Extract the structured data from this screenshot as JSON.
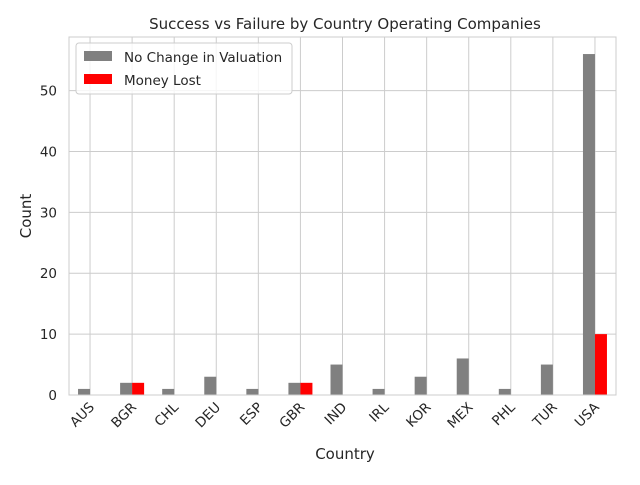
{
  "chart_data": {
    "type": "bar",
    "title": "Success vs Failure by Country Operating Companies",
    "xlabel": "Country",
    "ylabel": "Count",
    "categories": [
      "AUS",
      "BGR",
      "CHL",
      "DEU",
      "ESP",
      "GBR",
      "IND",
      "IRL",
      "KOR",
      "MEX",
      "PHL",
      "TUR",
      "USA"
    ],
    "series": [
      {
        "name": "No Change in Valuation",
        "color": "#808080",
        "values": [
          1,
          2,
          1,
          3,
          1,
          2,
          5,
          1,
          3,
          6,
          1,
          5,
          56
        ]
      },
      {
        "name": "Money Lost",
        "color": "#ff0000",
        "values": [
          0,
          2,
          0,
          0,
          0,
          2,
          0,
          0,
          0,
          0,
          0,
          0,
          10
        ]
      }
    ],
    "ylim": [
      0,
      58.8
    ],
    "yticks": [
      "0",
      "10",
      "20",
      "30",
      "40",
      "50"
    ],
    "grid": true,
    "legend_position": "top-left",
    "xtick_rotation": "45 degrees"
  }
}
